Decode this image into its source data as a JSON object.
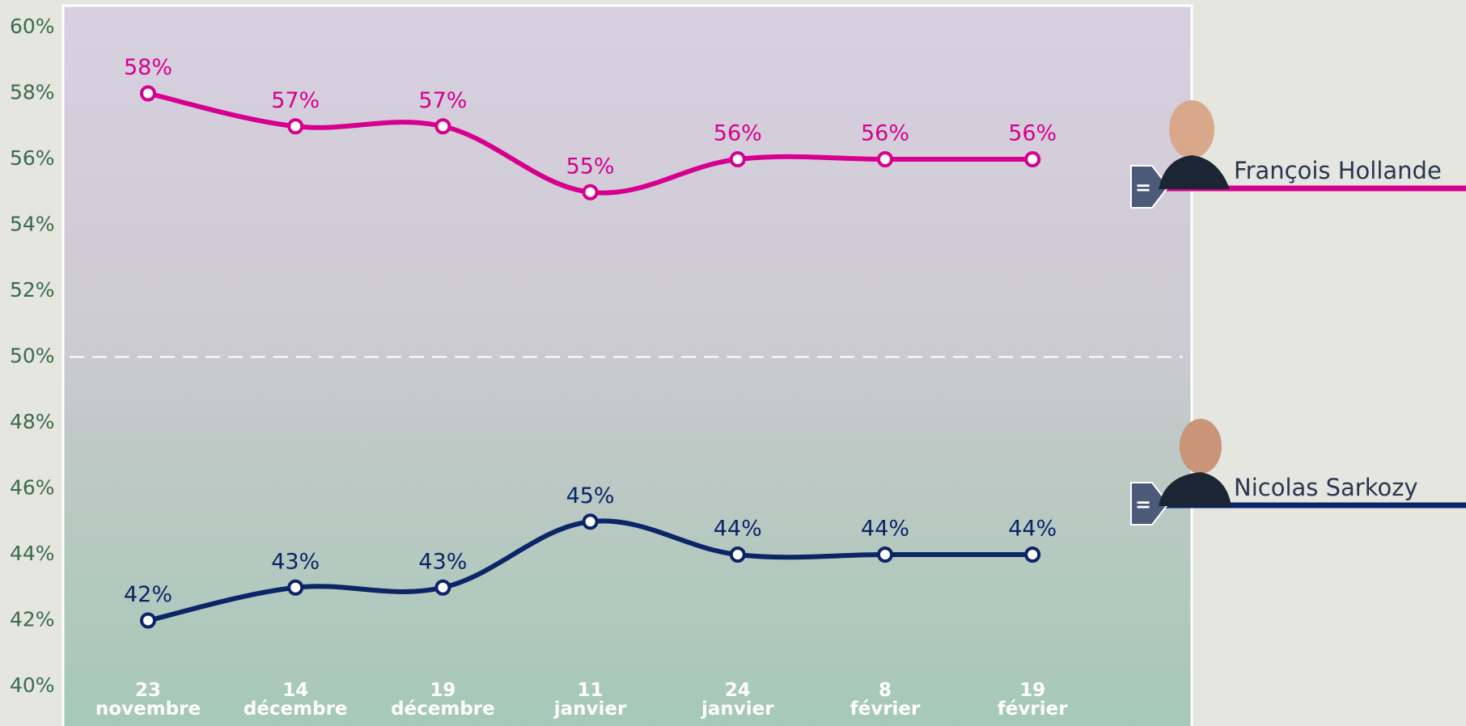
{
  "chart_data": {
    "type": "line",
    "categories": [
      "23\nnovembre",
      "14\ndécembre",
      "19\ndécembre",
      "11\njanvier",
      "24\njanvier",
      "8\nfévrier",
      "19\nfévrier"
    ],
    "series": [
      {
        "name": "François Hollande",
        "color": "#d6008f",
        "change_label": "=",
        "values": [
          58,
          57,
          57,
          55,
          56,
          56,
          56
        ],
        "value_labels": [
          "58%",
          "57%",
          "57%",
          "55%",
          "56%",
          "56%",
          "56%"
        ]
      },
      {
        "name": "Nicolas Sarkozy",
        "color": "#0b2566",
        "change_label": "=",
        "values": [
          42,
          43,
          43,
          45,
          44,
          44,
          44
        ],
        "value_labels": [
          "42%",
          "43%",
          "43%",
          "45%",
          "44%",
          "44%",
          "44%"
        ]
      }
    ],
    "ylim": [
      40,
      60
    ],
    "yticks": [
      {
        "value": 40,
        "label": "40%"
      },
      {
        "value": 42,
        "label": "42%"
      },
      {
        "value": 44,
        "label": "44%"
      },
      {
        "value": 46,
        "label": "46%"
      },
      {
        "value": 48,
        "label": "48%"
      },
      {
        "value": 50,
        "label": "50%"
      },
      {
        "value": 52,
        "label": "52%"
      },
      {
        "value": 54,
        "label": "54%"
      },
      {
        "value": 56,
        "label": "56%"
      },
      {
        "value": 58,
        "label": "58%"
      },
      {
        "value": 60,
        "label": "60%"
      }
    ],
    "reference_line": 50
  }
}
